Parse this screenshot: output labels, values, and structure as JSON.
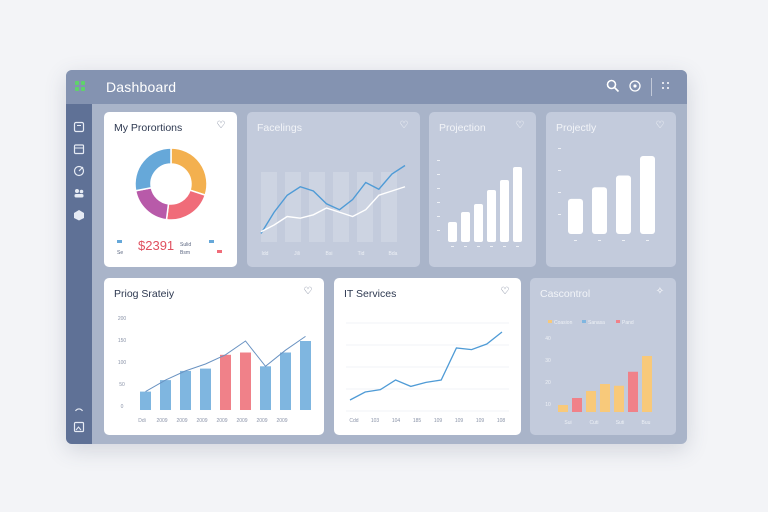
{
  "window": {
    "title": "Dashboard"
  },
  "topbar": {
    "icons": [
      "search-icon",
      "refresh-icon",
      "more-icon"
    ]
  },
  "sidebar": {
    "icons": [
      "notes-icon",
      "calendar-icon",
      "edit-icon",
      "users-icon",
      "box-icon",
      "clock-icon",
      "image-icon"
    ]
  },
  "cards": {
    "proportions": {
      "title": "My Prorortions",
      "value": "$2391",
      "legend_left": "Se",
      "legend_right": "Sulid",
      "legend_right2": "Bsm",
      "colors": [
        "#f3b04f",
        "#f06c79",
        "#b85aa9",
        "#66a8d9"
      ]
    },
    "facelings": {
      "title": "Facelings",
      "xticks": [
        "Idd",
        "Jili",
        "Bsi",
        "Tid",
        "Bda"
      ]
    },
    "projection": {
      "title": "Projection"
    },
    "projectly": {
      "title": "Projectly"
    },
    "strategy": {
      "title": "Priog Srateiy",
      "yticks": [
        "200",
        "150",
        "100",
        "50",
        "0"
      ],
      "xticks": [
        "Ddi",
        "2009",
        "2009",
        "2009",
        "2009",
        "2009",
        "2009",
        "2009"
      ]
    },
    "it_services": {
      "title": "IT Services",
      "xticks": [
        "Cdd",
        "103",
        "104",
        "185",
        "109",
        "109",
        "109",
        "108"
      ]
    },
    "cascontrol": {
      "title": "Cascontrol",
      "legend": [
        "Coasion",
        "Sanasa",
        "Pand"
      ],
      "yticks": [
        "40",
        "30",
        "20",
        "10"
      ],
      "xticks": [
        "Sui",
        "Cuti",
        "Suti",
        "Buu"
      ]
    }
  },
  "chart_data": [
    {
      "type": "pie",
      "title": "My Prorortions",
      "slices": [
        {
          "color": "#f3b04f",
          "value": 30
        },
        {
          "color": "#f06c79",
          "value": 22
        },
        {
          "color": "#b85aa9",
          "value": 20
        },
        {
          "color": "#66a8d9",
          "value": 28
        }
      ]
    },
    {
      "type": "line",
      "title": "Facelings",
      "x": [
        1,
        2,
        3,
        4,
        5,
        6,
        7,
        8,
        9,
        10,
        11,
        12
      ],
      "series": [
        {
          "values": [
            10,
            35,
            55,
            65,
            60,
            45,
            38,
            50,
            70,
            62,
            80,
            90
          ],
          "color": "#4f9bd6"
        },
        {
          "values": [
            12,
            20,
            30,
            28,
            32,
            40,
            35,
            30,
            38,
            55,
            60,
            65
          ],
          "color": "#ffffff"
        }
      ],
      "categories": [
        "Idd",
        "Jili",
        "Bsi",
        "Tid",
        "Bda"
      ]
    },
    {
      "type": "bar",
      "title": "Projection",
      "values": [
        20,
        30,
        38,
        52,
        62,
        75
      ]
    },
    {
      "type": "bar",
      "title": "Projectly",
      "values": [
        45,
        60,
        75,
        100
      ]
    },
    {
      "type": "bar",
      "title": "Priog Srateiy",
      "ylim": [
        0,
        200
      ],
      "values": [
        40,
        65,
        85,
        90,
        120,
        125,
        95,
        125,
        150
      ],
      "colors": [
        "#7fb6e0",
        "#7fb6e0",
        "#7fb6e0",
        "#7fb6e0",
        "#f08189",
        "#f08189",
        "#7fb6e0",
        "#7fb6e0",
        "#7fb6e0"
      ],
      "line": [
        40,
        65,
        85,
        100,
        120,
        150,
        95,
        130,
        160
      ]
    },
    {
      "type": "line",
      "title": "IT Services",
      "values": [
        5,
        15,
        18,
        30,
        22,
        27,
        30,
        70,
        68,
        75,
        90
      ]
    },
    {
      "type": "bar",
      "title": "Cascontrol",
      "ylim": [
        0,
        40
      ],
      "values": [
        4,
        8,
        12,
        16,
        15,
        23,
        32
      ],
      "colors": [
        "#f8c97a",
        "#f08189",
        "#f8c97a",
        "#f8c97a",
        "#f8c97a",
        "#f08189",
        "#f8c97a"
      ]
    }
  ]
}
